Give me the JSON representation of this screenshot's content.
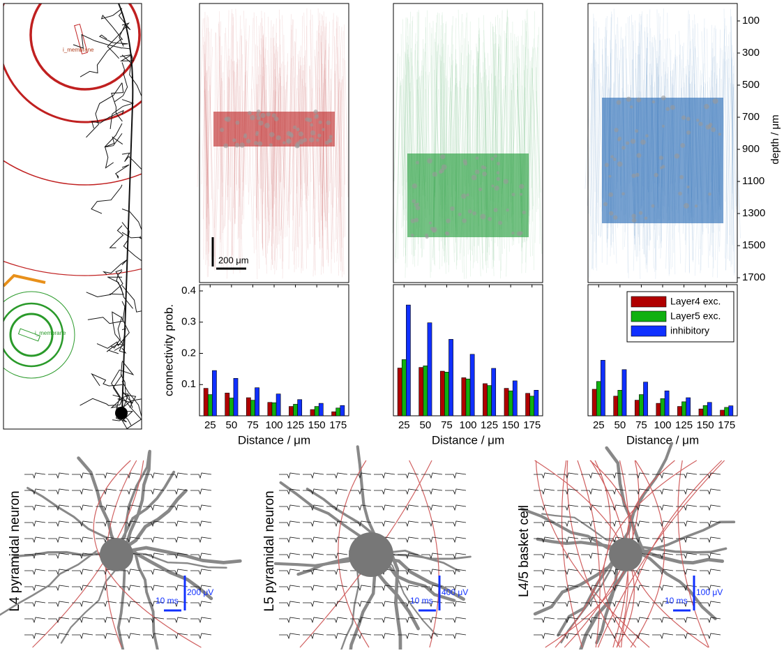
{
  "chart_data": [
    {
      "type": "bar",
      "y_label": "connectivity prob.",
      "x_label": "Distance / μm",
      "categories": [
        "25",
        "50",
        "75",
        "100",
        "125",
        "150",
        "175"
      ],
      "series": [
        {
          "name": "Layer4 exc.",
          "color": "#b00000",
          "values": [
            0.088,
            0.073,
            0.058,
            0.043,
            0.03,
            0.02,
            0.013
          ]
        },
        {
          "name": "Layer5 exc.",
          "color": "#10b010",
          "values": [
            0.068,
            0.057,
            0.05,
            0.042,
            0.037,
            0.03,
            0.025
          ]
        },
        {
          "name": "inhibitory",
          "color": "#1030ff",
          "values": [
            0.145,
            0.12,
            0.09,
            0.07,
            0.052,
            0.04,
            0.033
          ]
        }
      ],
      "ylim": [
        0,
        0.4
      ],
      "yticks": [
        0.1,
        0.2,
        0.3,
        0.4
      ],
      "legend": false
    },
    {
      "type": "bar",
      "x_label": "Distance / μm",
      "categories": [
        "25",
        "50",
        "75",
        "100",
        "125",
        "150",
        "175"
      ],
      "series": [
        {
          "name": "Layer4 exc.",
          "color": "#b00000",
          "values": [
            0.153,
            0.155,
            0.143,
            0.122,
            0.103,
            0.088,
            0.072
          ]
        },
        {
          "name": "Layer5 exc.",
          "color": "#10b010",
          "values": [
            0.18,
            0.16,
            0.14,
            0.118,
            0.097,
            0.08,
            0.063
          ]
        },
        {
          "name": "inhibitory",
          "color": "#1030ff",
          "values": [
            0.355,
            0.298,
            0.245,
            0.197,
            0.152,
            0.112,
            0.082
          ]
        }
      ],
      "ylim": [
        0,
        0.4
      ],
      "legend": false
    },
    {
      "type": "bar",
      "x_label": "Distance / μm",
      "categories": [
        "25",
        "50",
        "75",
        "100",
        "125",
        "150",
        "175"
      ],
      "series": [
        {
          "name": "Layer4 exc.",
          "color": "#b00000",
          "values": [
            0.085,
            0.063,
            0.05,
            0.04,
            0.03,
            0.022,
            0.018
          ]
        },
        {
          "name": "Layer5 exc.",
          "color": "#10b010",
          "values": [
            0.11,
            0.082,
            0.068,
            0.055,
            0.045,
            0.033,
            0.027
          ]
        },
        {
          "name": "inhibitory",
          "color": "#1030ff",
          "values": [
            0.178,
            0.148,
            0.108,
            0.08,
            0.058,
            0.043,
            0.032
          ]
        }
      ],
      "ylim": [
        0,
        0.4
      ],
      "legend": "upper right"
    }
  ],
  "depth_axis": {
    "label": "depth / μm",
    "ylim": [
      0,
      1730
    ],
    "yticks": [
      100,
      300,
      500,
      700,
      900,
      1100,
      1300,
      1500,
      1700
    ]
  },
  "scale_bar": "200 μm",
  "membrane_labels": [
    "i_membrane",
    "i_membrane"
  ],
  "recordings": [
    {
      "title": "L4 pyramidal neuron",
      "time_bar": "10 ms",
      "voltage_bar": "200 μV"
    },
    {
      "title": "L5 pyramidal neuron",
      "time_bar": "10 ms",
      "voltage_bar": "400 μV"
    },
    {
      "title": "L4/5 basket cell",
      "time_bar": "10 ms",
      "voltage_bar": "100 μV"
    }
  ]
}
